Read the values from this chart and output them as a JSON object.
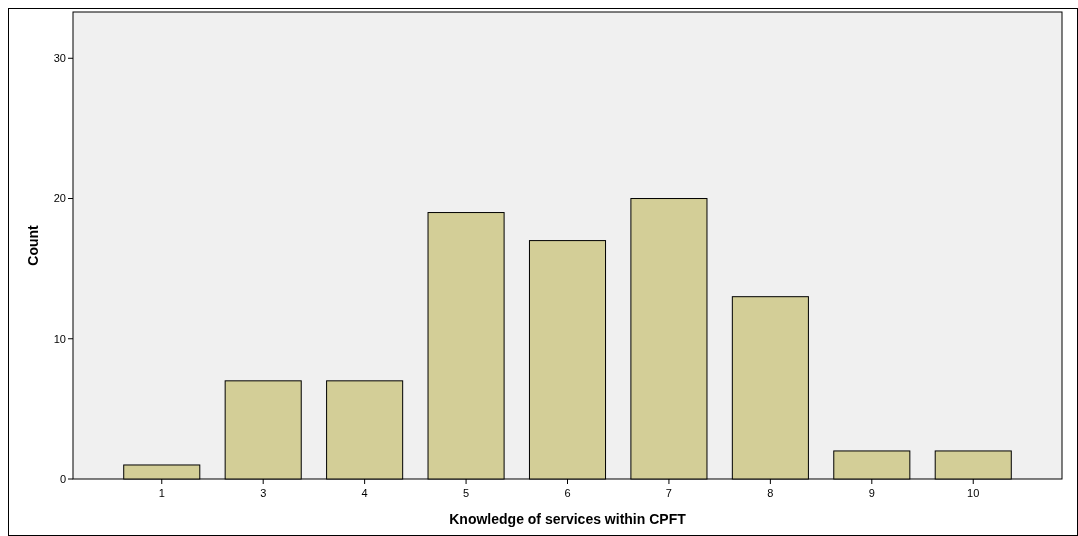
{
  "chart_data": {
    "type": "bar",
    "xlabel": "Knowledge of services within CPFT",
    "ylabel": "Count",
    "categories": [
      "1",
      "3",
      "4",
      "5",
      "6",
      "7",
      "8",
      "9",
      "10"
    ],
    "values": [
      1,
      7,
      7,
      19,
      17,
      20,
      13,
      2,
      2
    ],
    "color": "#d3ce97",
    "ylim": [
      0,
      33.3
    ],
    "yticks": [
      0,
      10,
      20,
      30
    ],
    "grid": false
  }
}
